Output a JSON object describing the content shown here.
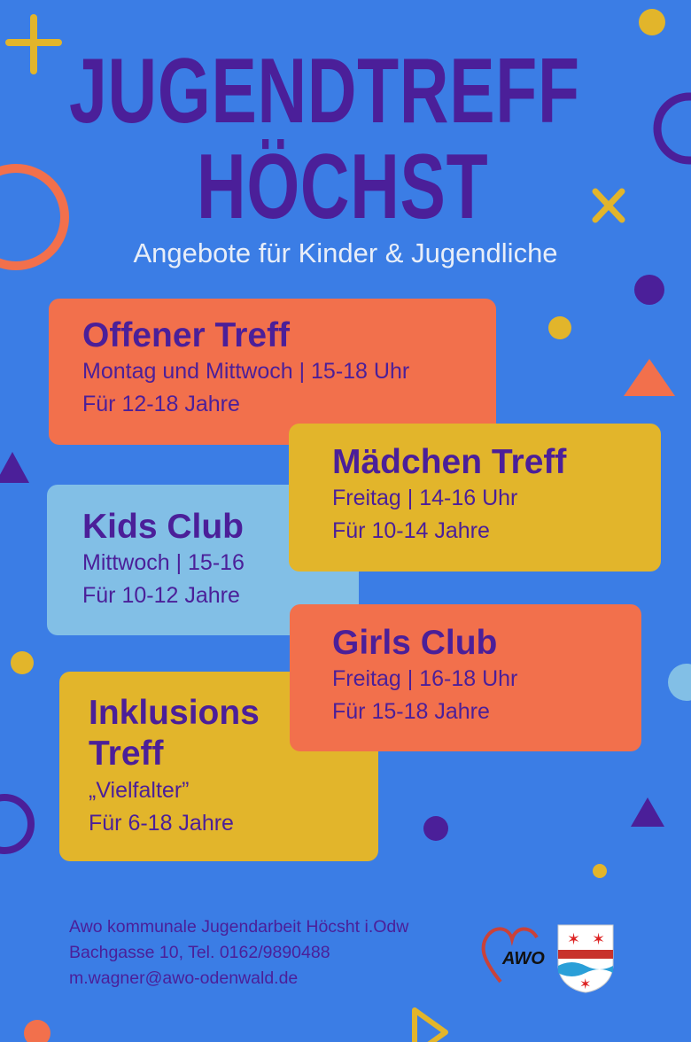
{
  "header": {
    "title_line1": "JUGENDTREFF",
    "title_line2": "HÖCHST",
    "subtitle": "Angebote für Kinder & Jugendliche"
  },
  "offers": [
    {
      "title": "Offener Treff",
      "schedule": "Montag und Mittwoch | 15-18 Uhr",
      "ages": "Für 12-18 Jahre",
      "color": "#f2704c"
    },
    {
      "title": "Kids Club",
      "schedule": "Mittwoch | 15-16",
      "ages": "Für 10-12 Jahre",
      "color": "#82bfe6"
    },
    {
      "title": "Mädchen Treff",
      "schedule": "Freitag | 14-16 Uhr",
      "ages": "Für 10-14 Jahre",
      "color": "#e2b52b"
    },
    {
      "title": "Girls Club",
      "schedule": "Freitag | 16-18 Uhr",
      "ages": "Für 15-18 Jahre",
      "color": "#f2704c"
    },
    {
      "title_line1": "Inklusions",
      "title_line2": "Treff",
      "subtitle": "„Vielfalter”",
      "ages": "Für 6-18 Jahre",
      "color": "#e2b52b"
    }
  ],
  "footer": {
    "organization": "Awo kommunale Jugendarbeit Höcsht i.Odw",
    "address": "Bachgasse 10, Tel. 0162/9890488",
    "email": "m.wagner@awo-odenwald.de",
    "logo_text": "AWO"
  },
  "colors": {
    "background": "#3b7de5",
    "text": "#4b1f99",
    "orange": "#f2704c",
    "yellow": "#e2b52b",
    "light_blue": "#82bfe6"
  }
}
